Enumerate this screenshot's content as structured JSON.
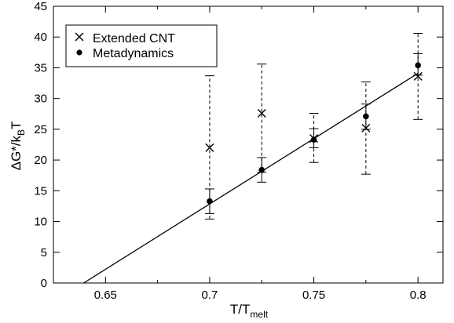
{
  "chart_data": {
    "type": "scatter",
    "xlabel": {
      "main": "T/T",
      "sub": "melt"
    },
    "ylabel": {
      "main": "ΔG*/k",
      "sub": "B",
      "tail": "T"
    },
    "xlim": [
      0.625,
      0.812
    ],
    "ylim": [
      0,
      45
    ],
    "xticks": [
      0.65,
      0.7,
      0.75,
      0.8
    ],
    "xtick_labels": [
      "0.65",
      "0.7",
      "0.75",
      "0.8"
    ],
    "yticks": [
      0,
      5,
      10,
      15,
      20,
      25,
      30,
      35,
      40,
      45
    ],
    "ytick_labels": [
      "0",
      "5",
      "10",
      "15",
      "20",
      "25",
      "30",
      "35",
      "40",
      "45"
    ],
    "legend_position": "top-left",
    "series": [
      {
        "name": "Extended CNT",
        "marker": "x",
        "error_style": "dashed",
        "x": [
          0.7,
          0.725,
          0.75,
          0.775,
          0.8
        ],
        "y": [
          22.0,
          27.6,
          23.5,
          25.2,
          33.6
        ],
        "err_low": [
          10.4,
          18.0,
          19.6,
          17.7,
          26.6
        ],
        "err_high": [
          33.7,
          35.6,
          27.6,
          32.7,
          40.6
        ]
      },
      {
        "name": "Metadynamics",
        "marker": "circle",
        "error_style": "solid",
        "x": [
          0.7,
          0.725,
          0.75,
          0.775,
          0.8
        ],
        "y": [
          13.3,
          18.4,
          23.3,
          27.1,
          35.4
        ],
        "err_low": [
          11.3,
          16.4,
          22.0,
          25.0,
          33.8
        ],
        "err_high": [
          15.3,
          20.4,
          25.1,
          29.1,
          37.3
        ]
      }
    ],
    "fit_line": {
      "x": [
        0.6395,
        0.8
      ],
      "y": [
        0,
        34.1
      ]
    }
  }
}
